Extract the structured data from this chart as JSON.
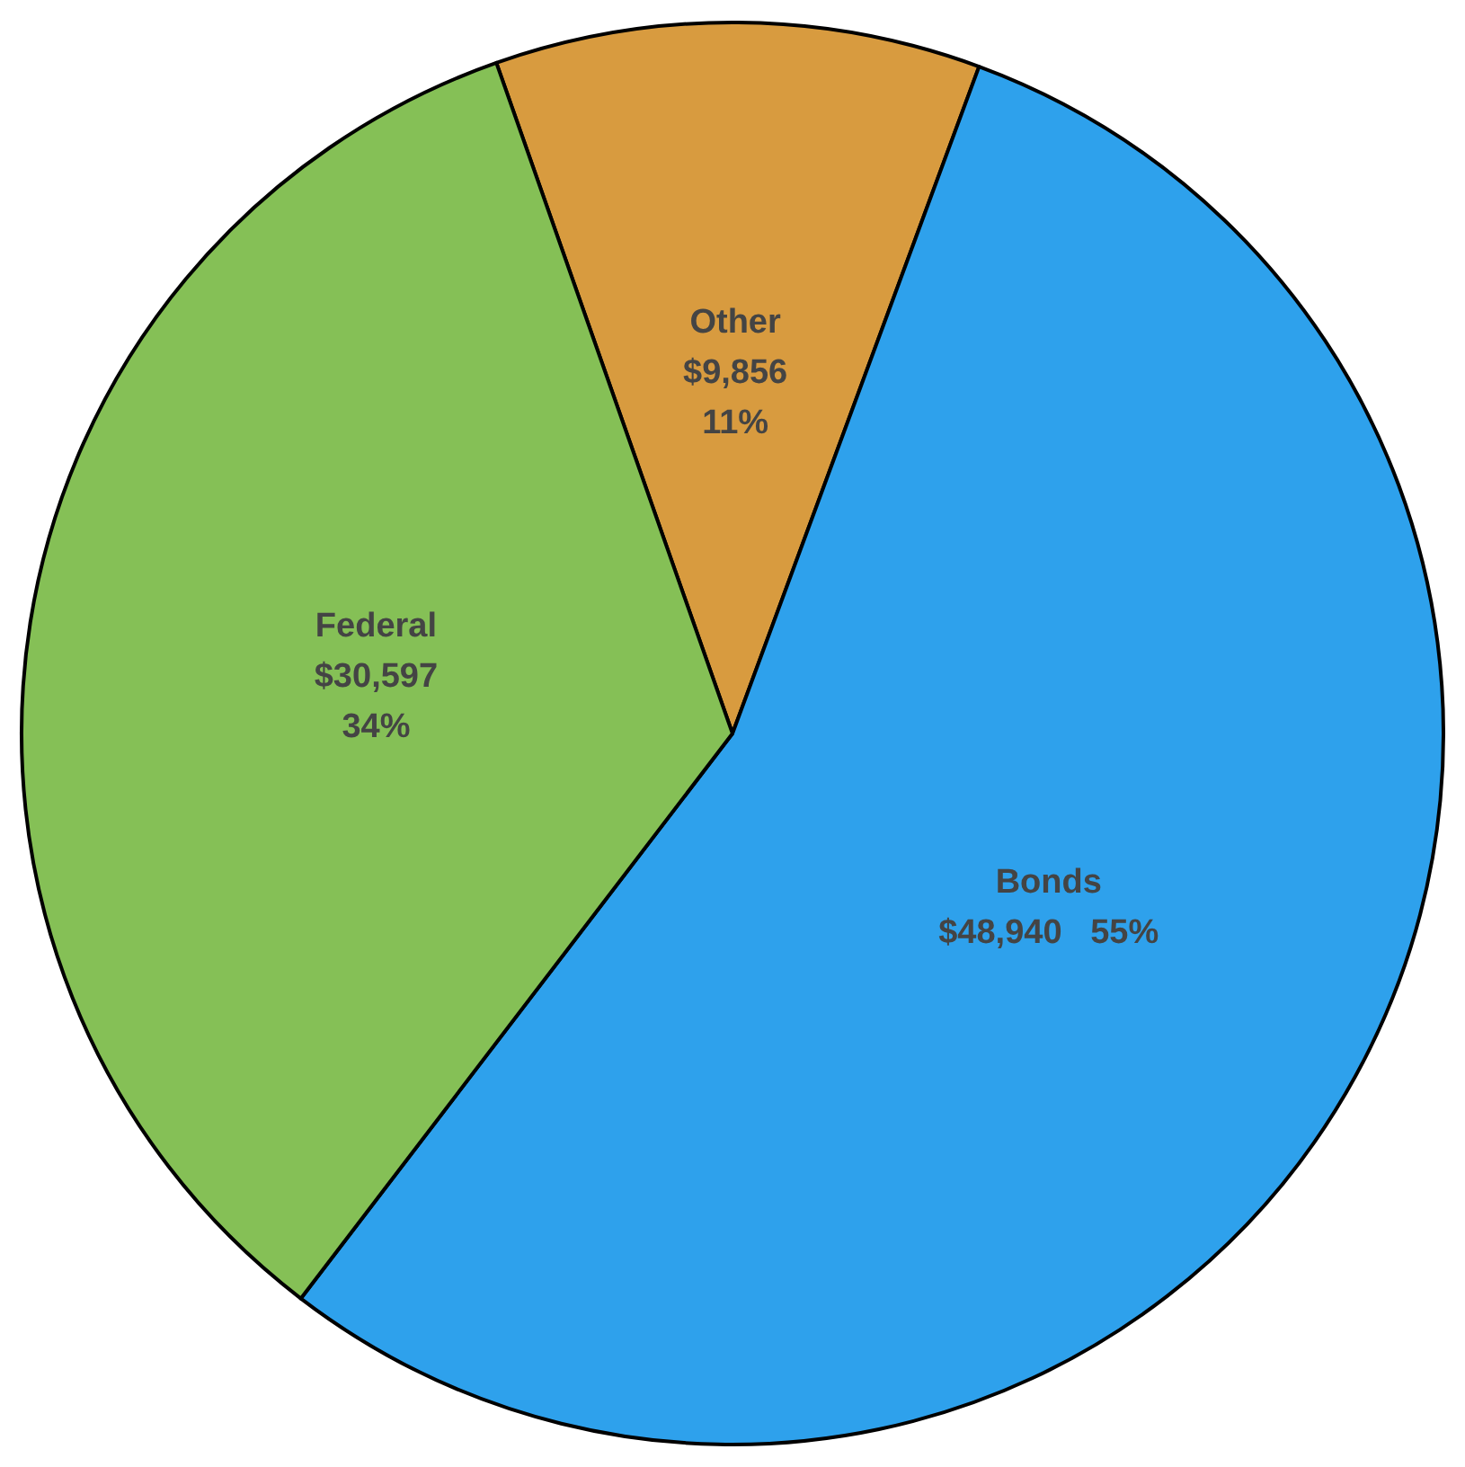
{
  "chart_data": {
    "type": "pie",
    "categories": [
      "Other",
      "Bonds",
      "Federal"
    ],
    "values": [
      9856,
      48940,
      30597
    ],
    "colors": [
      "#d89b3f",
      "#2ea1ec",
      "#85c056"
    ],
    "value_labels": [
      "$9,856\n11%",
      "$48,940   55%",
      "$30,597\n34%"
    ],
    "legend": false
  }
}
